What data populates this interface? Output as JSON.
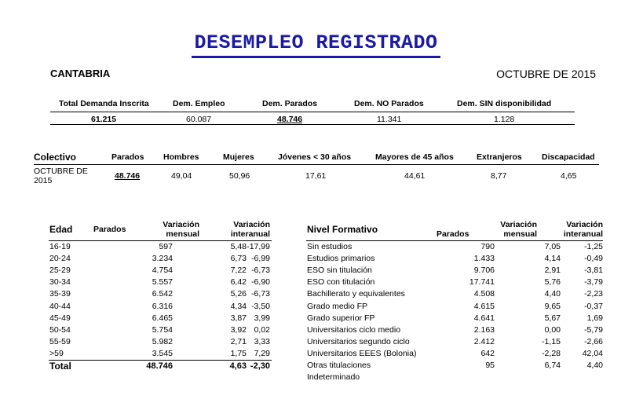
{
  "title": "DESEMPLEO REGISTRADO",
  "region": "CANTABRIA",
  "period": "OCTUBRE DE 2015",
  "summary": {
    "headers": [
      "Total Demanda Inscrita",
      "Dem. Empleo",
      "Dem. Parados",
      "Dem. NO Parados",
      "Dem. SIN disponibilidad"
    ],
    "values": [
      "61.215",
      "60.087",
      "48.746",
      "11.341",
      "1.128"
    ]
  },
  "colectivo": {
    "headers": [
      "Colectivo",
      "Parados",
      "Hombres",
      "Mujeres",
      "Jóvenes < 30 años",
      "Mayores de 45 años",
      "Extranjeros",
      "Discapacidad"
    ],
    "row_label_1": "OCTUBRE DE",
    "row_label_2": "2015",
    "values": [
      "48.746",
      "49,04",
      "50,96",
      "17,61",
      "44,61",
      "8,77",
      "4,65"
    ]
  },
  "edad": {
    "headers": {
      "col1": "Edad",
      "col2": "Parados",
      "col3a": "Variación",
      "col3b": "mensual",
      "col4a": "Variación",
      "col4b": "interanual"
    },
    "rows": [
      [
        "16-19",
        "597",
        "5,48",
        "-17,99"
      ],
      [
        "20-24",
        "3.234",
        "6,73",
        "-6,99"
      ],
      [
        "25-29",
        "4.754",
        "7,22",
        "-6,73"
      ],
      [
        "30-34",
        "5.557",
        "6,42",
        "-6,90"
      ],
      [
        "35-39",
        "6.542",
        "5,26",
        "-6,73"
      ],
      [
        "40-44",
        "6.316",
        "4,34",
        "-3,50"
      ],
      [
        "45-49",
        "6.465",
        "3,87",
        "3,99"
      ],
      [
        "50-54",
        "5.754",
        "3,92",
        "0,02"
      ],
      [
        "55-59",
        "5.982",
        "2,71",
        "3,33"
      ],
      [
        ">59",
        "3.545",
        "1,75",
        "7,29"
      ]
    ],
    "total": [
      "Total",
      "48.746",
      "4,63",
      "-2,30"
    ]
  },
  "formativo": {
    "headers": {
      "col1": "Nivel Formativo",
      "col2": "Parados",
      "col3a": "Variación",
      "col3b": "mensual",
      "col4a": "Variación",
      "col4b": "interanual"
    },
    "rows": [
      [
        "Sin estudios",
        "790",
        "7,05",
        "-1,25"
      ],
      [
        "Estudios primarios",
        "1.433",
        "4,14",
        "-0,49"
      ],
      [
        "ESO sin titulación",
        "9.706",
        "2,91",
        "-3,81"
      ],
      [
        "ESO con titulación",
        "17.741",
        "5,76",
        "-3,79"
      ],
      [
        "Bachillerato y equivalentes",
        "4.508",
        "4,40",
        "-2,23"
      ],
      [
        "Grado medio FP",
        "4.615",
        "9,65",
        "-0,37"
      ],
      [
        "Grado superior FP",
        "4.641",
        "5,67",
        "1,69"
      ],
      [
        "Universitarios ciclo medio",
        "2.163",
        "0,00",
        "-5,79"
      ],
      [
        "Universitarios segundo ciclo",
        "2.412",
        "-1,15",
        "-2,66"
      ],
      [
        "Universitarios EEES (Bolonia)",
        "642",
        "-2,28",
        "42,04"
      ],
      [
        "Otras titulaciones",
        "95",
        "6,74",
        "4,40"
      ],
      [
        "Indeterminado",
        "",
        "",
        ""
      ]
    ]
  }
}
